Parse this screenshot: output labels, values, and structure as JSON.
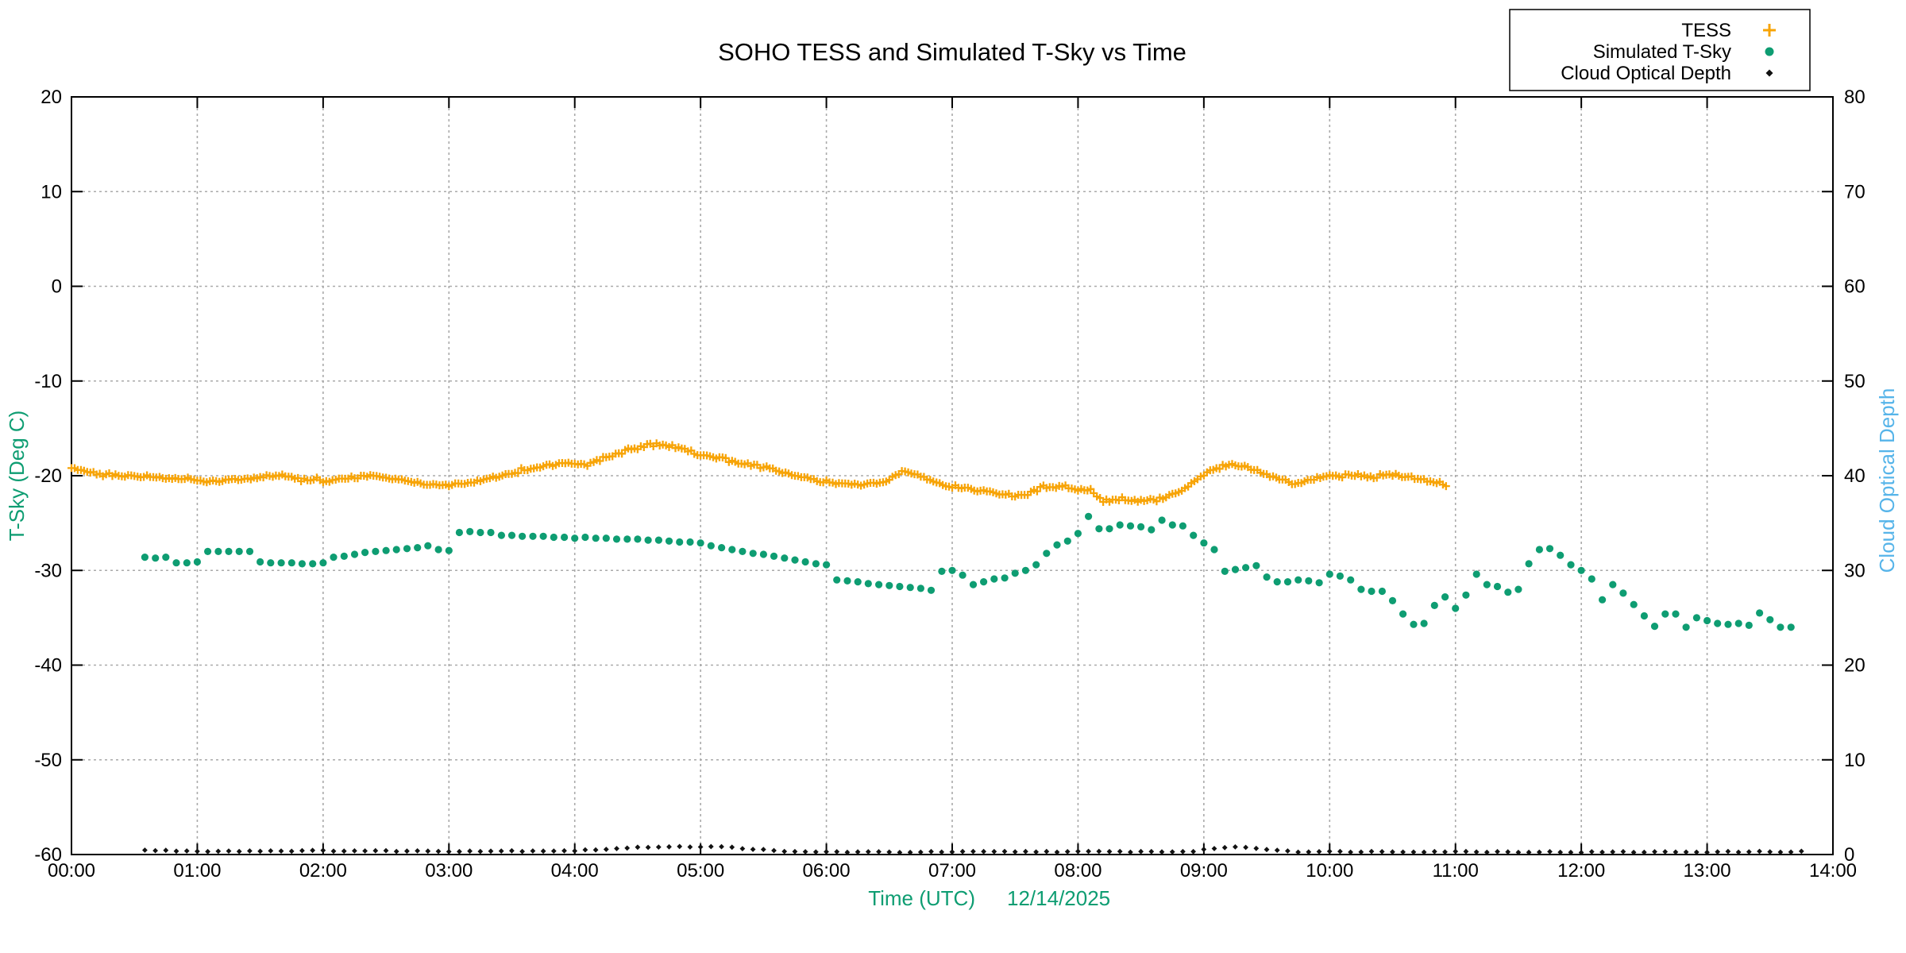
{
  "title": "SOHO TESS and Simulated T-Sky vs Time",
  "colors": {
    "tess": "#F7A407",
    "tsky": "#0E9D72",
    "cloud": "#111111",
    "left_axis_label": "#0E9D72",
    "right_axis_label": "#56B4E9",
    "grid": "#AAAAAA",
    "frame": "#000000"
  },
  "legend": {
    "position": "top-right",
    "entries": [
      "TESS",
      "Simulated T-Sky",
      "Cloud Optical Depth"
    ]
  },
  "chart_data": {
    "type": "scatter",
    "title": "SOHO TESS and Simulated T-Sky vs Time",
    "xlabel": "Time (UTC)",
    "date_annotation": "12/14/2025",
    "grid": true,
    "legend_position": "top-right",
    "x_axis": {
      "unit": "hours UTC",
      "range": [
        0,
        14
      ],
      "tick_interval_hours": 1,
      "tick_labels": [
        "00:00",
        "01:00",
        "02:00",
        "03:00",
        "04:00",
        "05:00",
        "06:00",
        "07:00",
        "08:00",
        "09:00",
        "10:00",
        "11:00",
        "12:00",
        "13:00",
        "14:00"
      ]
    },
    "y_left": {
      "label": "T-Sky (Deg C)",
      "range": [
        -60,
        20
      ],
      "ticks": [
        20,
        10,
        0,
        -10,
        -20,
        -30,
        -40,
        -50,
        -60
      ]
    },
    "y_right": {
      "label": "Cloud Optical Depth",
      "range": [
        0,
        80
      ],
      "ticks": [
        0,
        10,
        20,
        30,
        40,
        50,
        60,
        70,
        80
      ]
    },
    "series": [
      {
        "name": "TESS",
        "axis": "left",
        "marker": "plus",
        "color": "#F7A407",
        "cadence_minutes": 1.5,
        "noise_amplitude_c": 0.25,
        "time_range": [
          0.0,
          10.93
        ],
        "keypoints": [
          [
            0.0,
            -19.2
          ],
          [
            0.15,
            -19.7
          ],
          [
            0.4,
            -20.0
          ],
          [
            0.7,
            -20.2
          ],
          [
            0.95,
            -20.4
          ],
          [
            1.1,
            -20.6
          ],
          [
            1.3,
            -20.4
          ],
          [
            1.5,
            -20.2
          ],
          [
            1.65,
            -20.0
          ],
          [
            1.85,
            -20.4
          ],
          [
            2.05,
            -20.5
          ],
          [
            2.3,
            -20.1
          ],
          [
            2.45,
            -20.0
          ],
          [
            2.6,
            -20.4
          ],
          [
            2.75,
            -20.8
          ],
          [
            2.95,
            -21.0
          ],
          [
            3.1,
            -20.9
          ],
          [
            3.3,
            -20.3
          ],
          [
            3.55,
            -19.5
          ],
          [
            3.75,
            -18.9
          ],
          [
            3.95,
            -18.6
          ],
          [
            4.1,
            -18.8
          ],
          [
            4.3,
            -17.8
          ],
          [
            4.45,
            -17.2
          ],
          [
            4.6,
            -16.7
          ],
          [
            4.8,
            -17.0
          ],
          [
            5.0,
            -17.8
          ],
          [
            5.25,
            -18.4
          ],
          [
            5.5,
            -19.1
          ],
          [
            5.75,
            -20.0
          ],
          [
            6.0,
            -20.7
          ],
          [
            6.25,
            -20.9
          ],
          [
            6.45,
            -20.8
          ],
          [
            6.6,
            -19.5
          ],
          [
            6.75,
            -20.0
          ],
          [
            6.9,
            -20.9
          ],
          [
            7.05,
            -21.3
          ],
          [
            7.3,
            -21.7
          ],
          [
            7.5,
            -22.2
          ],
          [
            7.6,
            -21.9
          ],
          [
            7.7,
            -21.3
          ],
          [
            7.85,
            -21.1
          ],
          [
            8.0,
            -21.5
          ],
          [
            8.1,
            -21.4
          ],
          [
            8.2,
            -22.8
          ],
          [
            8.3,
            -22.4
          ],
          [
            8.5,
            -22.7
          ],
          [
            8.65,
            -22.5
          ],
          [
            8.8,
            -21.8
          ],
          [
            8.95,
            -20.3
          ],
          [
            9.1,
            -19.2
          ],
          [
            9.25,
            -18.9
          ],
          [
            9.4,
            -19.4
          ],
          [
            9.55,
            -20.1
          ],
          [
            9.7,
            -20.8
          ],
          [
            9.85,
            -20.5
          ],
          [
            10.0,
            -19.9
          ],
          [
            10.2,
            -20.0
          ],
          [
            10.35,
            -20.1
          ],
          [
            10.5,
            -19.8
          ],
          [
            10.65,
            -20.2
          ],
          [
            10.8,
            -20.6
          ],
          [
            10.93,
            -21.1
          ]
        ]
      },
      {
        "name": "Simulated T-Sky",
        "axis": "left",
        "marker": "dot",
        "color": "#0E9D72",
        "cadence_minutes": 5,
        "points": [
          [
            0.583,
            -28.6
          ],
          [
            0.667,
            -28.7
          ],
          [
            0.75,
            -28.6
          ],
          [
            0.833,
            -29.2
          ],
          [
            0.917,
            -29.2
          ],
          [
            1.0,
            -29.1
          ],
          [
            1.083,
            -28.0
          ],
          [
            1.167,
            -28.0
          ],
          [
            1.25,
            -28.0
          ],
          [
            1.333,
            -28.0
          ],
          [
            1.417,
            -28.0
          ],
          [
            1.5,
            -29.1
          ],
          [
            1.583,
            -29.2
          ],
          [
            1.667,
            -29.2
          ],
          [
            1.75,
            -29.2
          ],
          [
            1.833,
            -29.3
          ],
          [
            1.917,
            -29.3
          ],
          [
            2.0,
            -29.2
          ],
          [
            2.083,
            -28.6
          ],
          [
            2.167,
            -28.5
          ],
          [
            2.25,
            -28.3
          ],
          [
            2.333,
            -28.1
          ],
          [
            2.417,
            -28.0
          ],
          [
            2.5,
            -27.9
          ],
          [
            2.583,
            -27.8
          ],
          [
            2.667,
            -27.7
          ],
          [
            2.75,
            -27.6
          ],
          [
            2.833,
            -27.4
          ],
          [
            2.917,
            -27.8
          ],
          [
            3.0,
            -27.9
          ],
          [
            3.083,
            -26.0
          ],
          [
            3.167,
            -25.9
          ],
          [
            3.25,
            -26.0
          ],
          [
            3.333,
            -26.0
          ],
          [
            3.417,
            -26.3
          ],
          [
            3.5,
            -26.3
          ],
          [
            3.583,
            -26.4
          ],
          [
            3.667,
            -26.4
          ],
          [
            3.75,
            -26.4
          ],
          [
            3.833,
            -26.5
          ],
          [
            3.917,
            -26.5
          ],
          [
            4.0,
            -26.6
          ],
          [
            4.083,
            -26.5
          ],
          [
            4.167,
            -26.6
          ],
          [
            4.25,
            -26.6
          ],
          [
            4.333,
            -26.7
          ],
          [
            4.417,
            -26.7
          ],
          [
            4.5,
            -26.7
          ],
          [
            4.583,
            -26.8
          ],
          [
            4.667,
            -26.8
          ],
          [
            4.75,
            -26.9
          ],
          [
            4.833,
            -27.0
          ],
          [
            4.917,
            -27.0
          ],
          [
            5.0,
            -27.1
          ],
          [
            5.083,
            -27.4
          ],
          [
            5.167,
            -27.6
          ],
          [
            5.25,
            -27.8
          ],
          [
            5.333,
            -28.0
          ],
          [
            5.417,
            -28.2
          ],
          [
            5.5,
            -28.3
          ],
          [
            5.583,
            -28.5
          ],
          [
            5.667,
            -28.7
          ],
          [
            5.75,
            -28.9
          ],
          [
            5.833,
            -29.1
          ],
          [
            5.917,
            -29.3
          ],
          [
            6.0,
            -29.4
          ],
          [
            6.083,
            -31.0
          ],
          [
            6.167,
            -31.1
          ],
          [
            6.25,
            -31.2
          ],
          [
            6.333,
            -31.4
          ],
          [
            6.417,
            -31.5
          ],
          [
            6.5,
            -31.6
          ],
          [
            6.583,
            -31.7
          ],
          [
            6.667,
            -31.8
          ],
          [
            6.75,
            -31.9
          ],
          [
            6.833,
            -32.1
          ],
          [
            6.917,
            -30.1
          ],
          [
            7.0,
            -30.0
          ],
          [
            7.083,
            -30.5
          ],
          [
            7.167,
            -31.5
          ],
          [
            7.25,
            -31.2
          ],
          [
            7.333,
            -30.9
          ],
          [
            7.417,
            -30.8
          ],
          [
            7.5,
            -30.3
          ],
          [
            7.583,
            -30.0
          ],
          [
            7.667,
            -29.4
          ],
          [
            7.75,
            -28.2
          ],
          [
            7.833,
            -27.3
          ],
          [
            7.917,
            -26.9
          ],
          [
            8.0,
            -26.1
          ],
          [
            8.083,
            -24.3
          ],
          [
            8.167,
            -25.6
          ],
          [
            8.25,
            -25.6
          ],
          [
            8.333,
            -25.2
          ],
          [
            8.417,
            -25.3
          ],
          [
            8.5,
            -25.4
          ],
          [
            8.583,
            -25.7
          ],
          [
            8.667,
            -24.7
          ],
          [
            8.75,
            -25.2
          ],
          [
            8.833,
            -25.3
          ],
          [
            8.917,
            -26.3
          ],
          [
            9.0,
            -27.1
          ],
          [
            9.083,
            -27.8
          ],
          [
            9.167,
            -30.1
          ],
          [
            9.25,
            -29.9
          ],
          [
            9.333,
            -29.7
          ],
          [
            9.417,
            -29.5
          ],
          [
            9.5,
            -30.7
          ],
          [
            9.583,
            -31.2
          ],
          [
            9.667,
            -31.2
          ],
          [
            9.75,
            -31.0
          ],
          [
            9.833,
            -31.1
          ],
          [
            9.917,
            -31.3
          ],
          [
            10.0,
            -30.4
          ],
          [
            10.083,
            -30.6
          ],
          [
            10.167,
            -31.0
          ],
          [
            10.25,
            -32.0
          ],
          [
            10.333,
            -32.2
          ],
          [
            10.417,
            -32.2
          ],
          [
            10.5,
            -33.2
          ],
          [
            10.583,
            -34.6
          ],
          [
            10.667,
            -35.7
          ],
          [
            10.75,
            -35.6
          ],
          [
            10.833,
            -33.7
          ],
          [
            10.917,
            -32.8
          ],
          [
            11.0,
            -34.0
          ],
          [
            11.083,
            -32.6
          ],
          [
            11.167,
            -30.4
          ],
          [
            11.25,
            -31.5
          ],
          [
            11.333,
            -31.7
          ],
          [
            11.417,
            -32.3
          ],
          [
            11.5,
            -32.0
          ],
          [
            11.583,
            -29.3
          ],
          [
            11.667,
            -27.8
          ],
          [
            11.75,
            -27.7
          ],
          [
            11.833,
            -28.4
          ],
          [
            11.917,
            -29.4
          ],
          [
            12.0,
            -30.0
          ],
          [
            12.083,
            -30.9
          ],
          [
            12.167,
            -33.1
          ],
          [
            12.25,
            -31.5
          ],
          [
            12.333,
            -32.4
          ],
          [
            12.417,
            -33.6
          ],
          [
            12.5,
            -34.8
          ],
          [
            12.583,
            -35.9
          ],
          [
            12.667,
            -34.6
          ],
          [
            12.75,
            -34.6
          ],
          [
            12.833,
            -36.0
          ],
          [
            12.917,
            -35.0
          ],
          [
            13.0,
            -35.3
          ],
          [
            13.083,
            -35.6
          ],
          [
            13.167,
            -35.7
          ],
          [
            13.25,
            -35.6
          ],
          [
            13.333,
            -35.8
          ],
          [
            13.417,
            -34.5
          ],
          [
            13.5,
            -35.2
          ],
          [
            13.583,
            -36.0
          ],
          [
            13.667,
            -36.0
          ]
        ]
      },
      {
        "name": "Cloud Optical Depth",
        "axis": "right",
        "marker": "small-dot",
        "color": "#111111",
        "cadence_minutes": 5,
        "noise_amplitude": 0.05,
        "time_range": [
          0.583,
          13.75
        ],
        "keypoints": [
          [
            0.583,
            0.45
          ],
          [
            1.0,
            0.35
          ],
          [
            2.0,
            0.4
          ],
          [
            3.0,
            0.35
          ],
          [
            4.0,
            0.4
          ],
          [
            4.3,
            0.6
          ],
          [
            4.7,
            0.85
          ],
          [
            5.2,
            0.8
          ],
          [
            5.5,
            0.5
          ],
          [
            5.65,
            0.3
          ],
          [
            6.5,
            0.25
          ],
          [
            7.5,
            0.3
          ],
          [
            8.9,
            0.3
          ],
          [
            9.1,
            0.7
          ],
          [
            9.3,
            0.8
          ],
          [
            9.55,
            0.5
          ],
          [
            9.75,
            0.3
          ],
          [
            11.0,
            0.3
          ],
          [
            12.0,
            0.25
          ],
          [
            13.75,
            0.3
          ]
        ]
      }
    ]
  }
}
